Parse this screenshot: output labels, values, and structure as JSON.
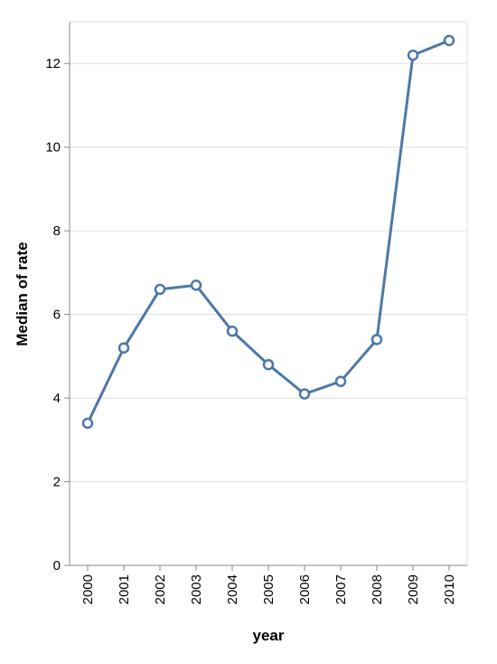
{
  "colors": {
    "series": "#4c78a8",
    "grid": "#dddddd",
    "axis": "#888888"
  },
  "chart_data": {
    "type": "line",
    "xlabel": "year",
    "ylabel": "Median of rate",
    "x": [
      "2000",
      "2001",
      "2002",
      "2003",
      "2004",
      "2005",
      "2006",
      "2007",
      "2008",
      "2009",
      "2010"
    ],
    "series": [
      {
        "values": [
          3.4,
          5.2,
          6.6,
          6.7,
          5.6,
          4.8,
          4.1,
          4.4,
          5.4,
          12.2,
          12.55
        ]
      }
    ],
    "ylim": [
      0,
      13
    ],
    "yticks": [
      0,
      2,
      4,
      6,
      8,
      10,
      12
    ],
    "markers": "hollow-circle",
    "grid": true,
    "legend": "none"
  }
}
